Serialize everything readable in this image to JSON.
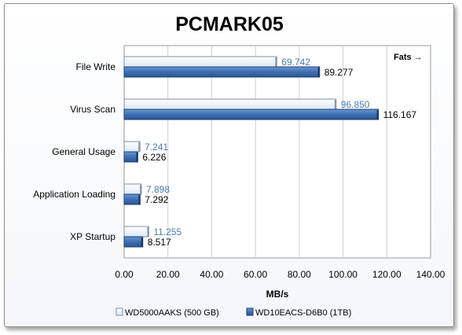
{
  "chart_data": {
    "type": "bar",
    "orientation": "horizontal",
    "title": "PCMARK05",
    "xlabel": "MB/s",
    "annotation": "Fats →",
    "categories": [
      "File Write",
      "Virus Scan",
      "General Usage",
      "Application Loading",
      "XP Startup"
    ],
    "series": [
      {
        "name": "WD5000AAKS (500 GB)",
        "values": [
          69.742,
          96.85,
          7.241,
          7.898,
          11.255
        ],
        "labels": [
          "69.742",
          "96.850",
          "7.241",
          "7.898",
          "11.255"
        ],
        "color": "#eaf3fb",
        "label_color": "#4a7ab0"
      },
      {
        "name": "WD10EACS-D6B0 (1TB)",
        "values": [
          89.277,
          116.167,
          6.226,
          7.292,
          8.517
        ],
        "labels": [
          "89.277",
          "116.167",
          "6.226",
          "7.292",
          "8.517"
        ],
        "color": "#3f6fb0",
        "label_color": "#000000"
      }
    ],
    "xlim": [
      0,
      140
    ],
    "xticks": [
      "0.00",
      "20.00",
      "40.00",
      "60.00",
      "80.00",
      "100.00",
      "120.00",
      "140.00"
    ],
    "grid": true,
    "legend_position": "bottom"
  }
}
